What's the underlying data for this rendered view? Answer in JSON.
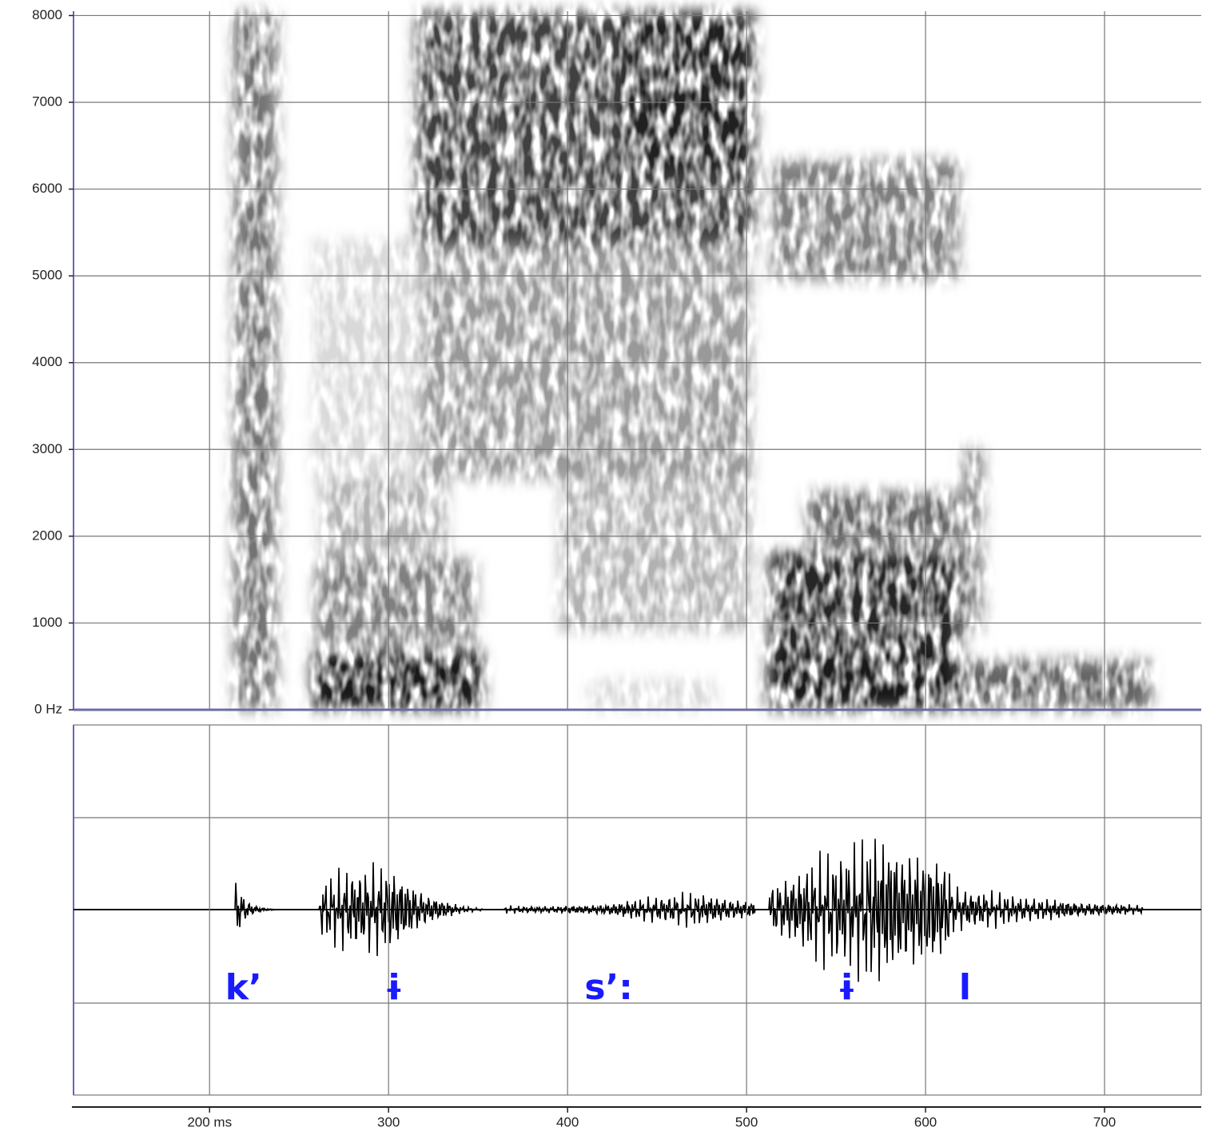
{
  "chart_data": {
    "type": "spectrogram",
    "xlim": [
      124,
      754
    ],
    "xticks": [
      {
        "value": 200,
        "label": "200 ms"
      },
      300,
      400,
      500,
      600,
      700
    ],
    "ylim": [
      0,
      8050
    ],
    "yticks": [
      {
        "value": 0,
        "label": "0 Hz"
      },
      1000,
      2000,
      3000,
      4000,
      5000,
      6000,
      7000,
      8000
    ],
    "grid": true,
    "annotation_color": "#1a1aff",
    "annotations": [
      {
        "text": "k’",
        "x": 219
      },
      {
        "text": "ɨ",
        "x": 303
      },
      {
        "text": "s’:",
        "x": 423
      },
      {
        "text": "ɨ",
        "x": 556
      },
      {
        "text": "l",
        "x": 622
      }
    ]
  }
}
